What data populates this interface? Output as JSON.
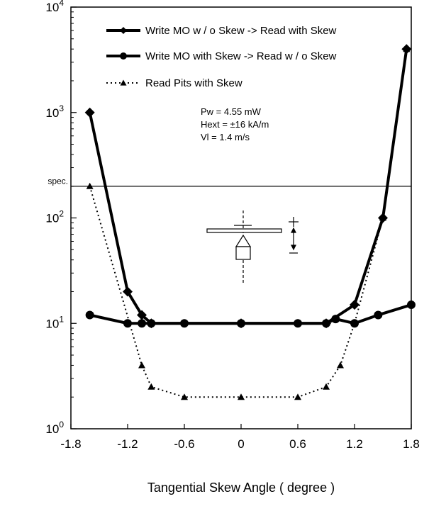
{
  "chart_data": {
    "type": "line",
    "title": "",
    "xlabel": "Tangential Skew Angle ( degree )",
    "ylabel": "",
    "xlim": [
      -1.8,
      1.8
    ],
    "ylim": [
      1,
      10000
    ],
    "yscale": "log",
    "grid": false,
    "legend_position": "top-right",
    "x_ticks": [
      -1.8,
      -1.2,
      -0.6,
      0,
      0.6,
      1.2,
      1.8
    ],
    "x_tick_labels": [
      "-1.8",
      "-1.2",
      "-0.6",
      "0",
      "0.6",
      "1.2",
      "1.8"
    ],
    "y_ticks": [
      1,
      10,
      100,
      1000,
      10000
    ],
    "y_tick_labels": [
      {
        "base": "10",
        "exp": "0"
      },
      {
        "base": "10",
        "exp": "1"
      },
      {
        "base": "10",
        "exp": "2"
      },
      {
        "base": "10",
        "exp": "3"
      },
      {
        "base": "10",
        "exp": "4"
      }
    ],
    "series": [
      {
        "name": "Write MO w / o Skew -> Read with Skew",
        "style": "solid-thick-diamond",
        "x": [
          -1.6,
          -1.2,
          -1.05,
          -0.95,
          0,
          0.9,
          1.2,
          1.5,
          1.75
        ],
        "y": [
          1000,
          20,
          12,
          10,
          10,
          10,
          15,
          100,
          4000
        ]
      },
      {
        "name": "Write MO with Skew -> Read w / o Skew",
        "style": "solid-thick-circle",
        "x": [
          -1.6,
          -1.2,
          -1.05,
          -0.95,
          -0.6,
          0,
          0.6,
          0.9,
          1.0,
          1.2,
          1.45,
          1.8
        ],
        "y": [
          12,
          10,
          10,
          10,
          10,
          10,
          10,
          10,
          11,
          10,
          12,
          15
        ]
      },
      {
        "name": "Read Pits with Skew",
        "style": "dotted-triangle",
        "x": [
          -1.6,
          -1.05,
          -0.95,
          -0.6,
          0,
          0.6,
          0.9,
          1.05,
          1.2,
          1.5,
          1.75
        ],
        "y": [
          200,
          4,
          2.5,
          2,
          2,
          2,
          2.5,
          4,
          10,
          100,
          4000
        ]
      }
    ],
    "reference_lines": [
      {
        "label": "spec.",
        "y": 200
      }
    ],
    "annotations": [
      "Pw   = 4.55 mW",
      "Hext = ±16 kA/m",
      "Vl    = 1.4 m/s"
    ]
  }
}
